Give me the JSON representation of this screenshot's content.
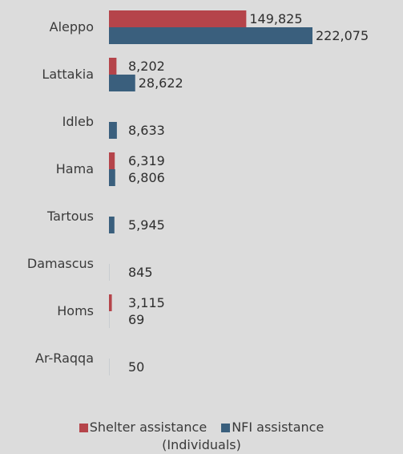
{
  "chart_data": {
    "type": "bar",
    "orientation": "horizontal",
    "categories": [
      "Aleppo",
      "Lattakia",
      "Idleb",
      "Hama",
      "Tartous",
      "Damascus",
      "Homs",
      "Ar-Raqqa"
    ],
    "series": [
      {
        "name": "Shelter assistance",
        "color": "#b5444a",
        "values": [
          149825,
          8202,
          null,
          6319,
          null,
          null,
          3115,
          null
        ],
        "labels": [
          "149,825",
          "8,202",
          "",
          "6,319",
          "",
          "",
          "3,115",
          ""
        ]
      },
      {
        "name": "NFI assistance",
        "color": "#3a5f7d",
        "values": [
          222075,
          28622,
          8633,
          6806,
          5945,
          845,
          69,
          50
        ],
        "labels": [
          "222,075",
          "28,622",
          "8,633",
          "6,806",
          "5,945",
          "845",
          "69",
          "50"
        ]
      }
    ],
    "xlim": [
      0,
      222075
    ],
    "xlabel": "(Individuals)",
    "legend_position": "bottom",
    "grid": false
  }
}
